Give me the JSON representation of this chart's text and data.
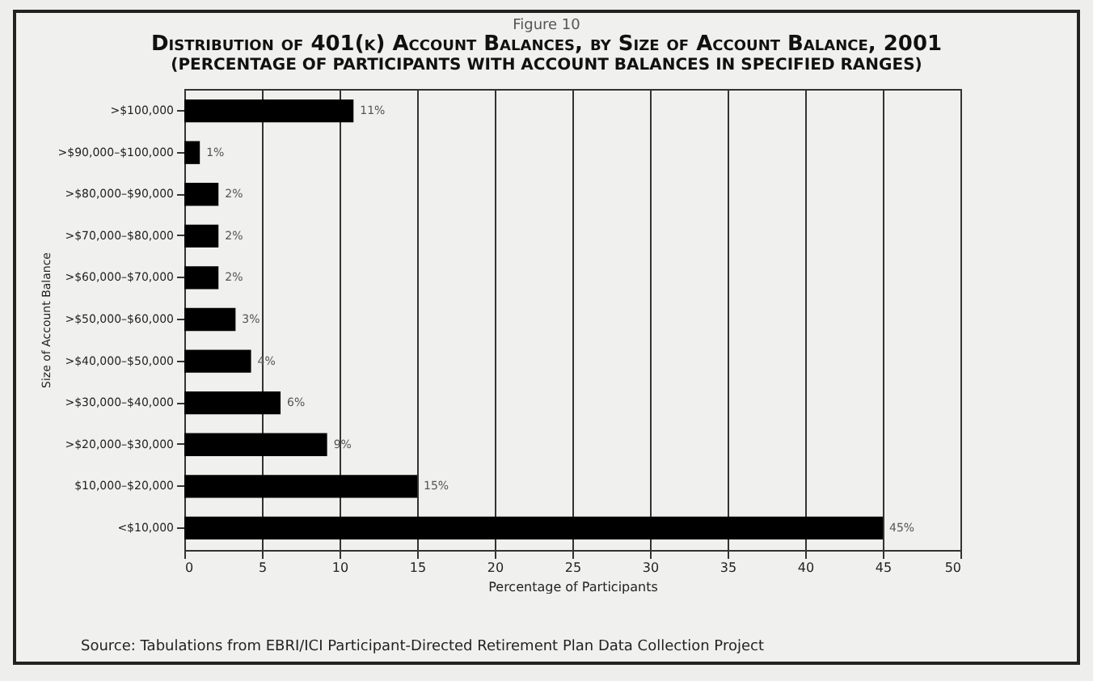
{
  "chart_data": {
    "type": "bar",
    "orientation": "horizontal",
    "title": "Distribution of 401(k) Account Balances, by Size of Account Balance, 2001",
    "subtitle": "(PERCENTAGE OF PARTICIPANTS WITH ACCOUNT BALANCES IN SPECIFIED RANGES)",
    "annotations": [
      "Figure 10",
      "Source: Tabulations from EBRI/ICI Participant-Directed Retirement Plan Data Collection Project"
    ],
    "categories": [
      ">$100,000",
      ">$90,000–$100,000",
      ">$80,000–$90,000",
      ">$70,000–$80,000",
      ">$60,000–$70,000",
      ">$50,000–$60,000",
      ">$40,000–$50,000",
      ">$30,000–$40,000",
      ">$20,000–$30,000",
      "$10,000–$20,000",
      "<$10,000"
    ],
    "values": [
      10.9,
      1.0,
      2.2,
      2.2,
      2.2,
      3.3,
      4.3,
      6.2,
      9.2,
      15.0,
      45.0
    ],
    "value_labels": [
      "11%",
      "1%",
      "2%",
      "2%",
      "2%",
      "3%",
      "4%",
      "6%",
      "9%",
      "15%",
      "45%"
    ],
    "color": "#000000",
    "xlabel": "Percentage of Participants",
    "ylabel": "Size of Account Balance",
    "xlim": [
      0,
      50
    ],
    "xticks": [
      0,
      5,
      10,
      15,
      20,
      25,
      30,
      35,
      40,
      45,
      50
    ],
    "grid": "x"
  }
}
